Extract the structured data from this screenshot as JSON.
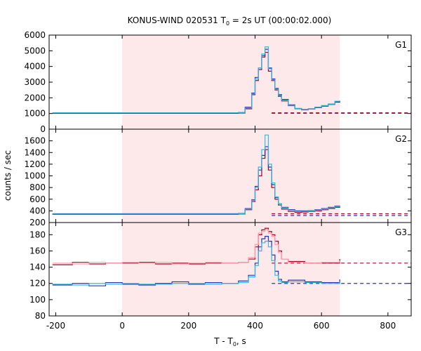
{
  "chart_data": {
    "type": "line",
    "title": "KONUS-WIND 020531 T",
    "title_sub": "0",
    "title_rest": " = 2s UT (00:00:02.000)",
    "xlabel": "T - T",
    "xlabel_sub": "0",
    "xlabel_rest": ", s",
    "ylabel": "counts / sec",
    "xlim": [
      -220,
      870
    ],
    "x_ticks": [
      -200,
      0,
      200,
      400,
      600,
      800
    ],
    "highlight_interval": [
      0,
      655
    ],
    "colors": {
      "highlight": "#fde8ea",
      "red": "#aa0022",
      "blue": "#2233bb",
      "pink": "#ff9db0",
      "cyan": "#33bbdd"
    },
    "panels": [
      {
        "name": "G1",
        "ylim": [
          0,
          6000
        ],
        "y_ticks": [
          0,
          1000,
          2000,
          3000,
          4000,
          5000,
          6000
        ],
        "background": [
          {
            "series": "red",
            "level": 1040
          },
          {
            "series": "blue",
            "level": 1010
          }
        ],
        "series": [
          {
            "color": "red",
            "x": [
              -210,
              350,
              370,
              390,
              400,
              410,
              420,
              430,
              440,
              450,
              460,
              470,
              480,
              500,
              520,
              540,
              560,
              580,
              600,
              620,
              640,
              655
            ],
            "y": [
              1030,
              1060,
              1300,
              2200,
              3100,
              3800,
              4600,
              4900,
              3700,
              3100,
              2500,
              2100,
              1800,
              1500,
              1300,
              1230,
              1280,
              1370,
              1460,
              1580,
              1720,
              1750
            ]
          },
          {
            "color": "blue",
            "x": [
              -210,
              350,
              370,
              390,
              400,
              410,
              420,
              430,
              440,
              450,
              460,
              470,
              480,
              500,
              520,
              540,
              560,
              580,
              600,
              620,
              640,
              655
            ],
            "y": [
              1010,
              1030,
              1400,
              2300,
              3300,
              3900,
              4700,
              5100,
              3900,
              3200,
              2600,
              2200,
              1900,
              1550,
              1320,
              1260,
              1300,
              1400,
              1500,
              1600,
              1760,
              1800
            ]
          },
          {
            "color": "cyan",
            "x": [
              -210,
              350,
              370,
              390,
              400,
              410,
              420,
              430,
              440,
              450,
              460,
              470,
              480,
              500,
              520,
              540,
              560,
              580,
              600,
              620,
              640,
              655
            ],
            "y": [
              1050,
              1060,
              1350,
              2250,
              3200,
              3900,
              4800,
              5250,
              3850,
              3150,
              2550,
              2150,
              1850,
              1520,
              1310,
              1250,
              1290,
              1390,
              1490,
              1600,
              1780,
              1820
            ]
          }
        ]
      },
      {
        "name": "G2",
        "ylim": [
          200,
          1800
        ],
        "y_ticks": [
          200,
          400,
          600,
          800,
          1000,
          1200,
          1400,
          1600
        ],
        "background": [
          {
            "series": "red",
            "level": 350
          },
          {
            "series": "blue",
            "level": 320
          }
        ],
        "series": [
          {
            "color": "red",
            "x": [
              -210,
              350,
              370,
              390,
              400,
              410,
              420,
              430,
              440,
              450,
              460,
              470,
              480,
              500,
              520,
              540,
              560,
              580,
              600,
              620,
              640,
              655
            ],
            "y": [
              340,
              345,
              420,
              560,
              760,
              1000,
              1300,
              1450,
              1100,
              800,
              600,
              500,
              430,
              390,
              375,
              380,
              390,
              400,
              420,
              440,
              460,
              470
            ]
          },
          {
            "color": "blue",
            "x": [
              -210,
              350,
              370,
              390,
              400,
              410,
              420,
              430,
              440,
              450,
              460,
              470,
              480,
              500,
              520,
              540,
              560,
              580,
              600,
              620,
              640,
              655
            ],
            "y": [
              350,
              355,
              440,
              590,
              820,
              1100,
              1350,
              1500,
              1150,
              850,
              630,
              520,
              460,
              420,
              400,
              400,
              405,
              420,
              440,
              460,
              480,
              490
            ]
          },
          {
            "color": "cyan",
            "x": [
              -210,
              350,
              370,
              390,
              400,
              410,
              420,
              430,
              440,
              450,
              460,
              470,
              480,
              500,
              520,
              540,
              560,
              580,
              600,
              620,
              640,
              655
            ],
            "y": [
              345,
              350,
              430,
              580,
              800,
              1150,
              1450,
              1700,
              1200,
              880,
              640,
              520,
              450,
              410,
              390,
              392,
              400,
              412,
              432,
              452,
              470,
              485
            ]
          }
        ]
      },
      {
        "name": "G3",
        "ylim": [
          80,
          195
        ],
        "y_ticks": [
          80,
          100,
          120,
          140,
          160,
          180
        ],
        "background": [
          {
            "series": "red",
            "level": 145
          },
          {
            "series": "blue",
            "level": 120
          }
        ],
        "series": [
          {
            "color": "red",
            "x": [
              -210,
              -150,
              -100,
              -50,
              0,
              50,
              100,
              150,
              200,
              250,
              300,
              350,
              380,
              400,
              410,
              420,
              430,
              440,
              450,
              460,
              470,
              480,
              500,
              550,
              600,
              655
            ],
            "y": [
              143,
              146,
              144,
              145,
              145,
              146,
              144,
              145,
              144,
              145,
              145,
              146,
              150,
              165,
              180,
              186,
              188,
              184,
              180,
              172,
              160,
              150,
              147,
              145,
              145,
              150
            ]
          },
          {
            "color": "pink",
            "x": [
              -210,
              -150,
              -100,
              -50,
              0,
              50,
              100,
              150,
              200,
              250,
              300,
              350,
              380,
              400,
              410,
              420,
              430,
              440,
              450,
              460,
              470,
              480,
              500,
              550,
              600,
              655
            ],
            "y": [
              145,
              144,
              146,
              145,
              146,
              145,
              146,
              144,
              145,
              146,
              145,
              146,
              152,
              168,
              182,
              184,
              186,
              182,
              178,
              168,
              158,
              150,
              146,
              145,
              146,
              148
            ]
          },
          {
            "color": "blue",
            "x": [
              -210,
              -150,
              -100,
              -50,
              0,
              50,
              100,
              150,
              200,
              250,
              300,
              350,
              380,
              400,
              410,
              420,
              430,
              440,
              450,
              460,
              470,
              480,
              500,
              550,
              600,
              655
            ],
            "y": [
              118,
              120,
              117,
              121,
              119,
              118,
              120,
              122,
              119,
              121,
              120,
              123,
              130,
              145,
              165,
              175,
              178,
              172,
              155,
              135,
              125,
              122,
              124,
              122,
              121,
              125
            ]
          },
          {
            "color": "cyan",
            "x": [
              -210,
              -150,
              -100,
              -50,
              0,
              50,
              100,
              150,
              200,
              250,
              300,
              350,
              380,
              400,
              410,
              420,
              430,
              440,
              450,
              460,
              470,
              480,
              500,
              550,
              600,
              655
            ],
            "y": [
              119,
              118,
              120,
              119,
              120,
              119,
              119,
              120,
              120,
              119,
              120,
              121,
              128,
              142,
              160,
              170,
              172,
              165,
              148,
              130,
              123,
              121,
              122,
              121,
              120,
              122
            ]
          }
        ]
      }
    ]
  }
}
